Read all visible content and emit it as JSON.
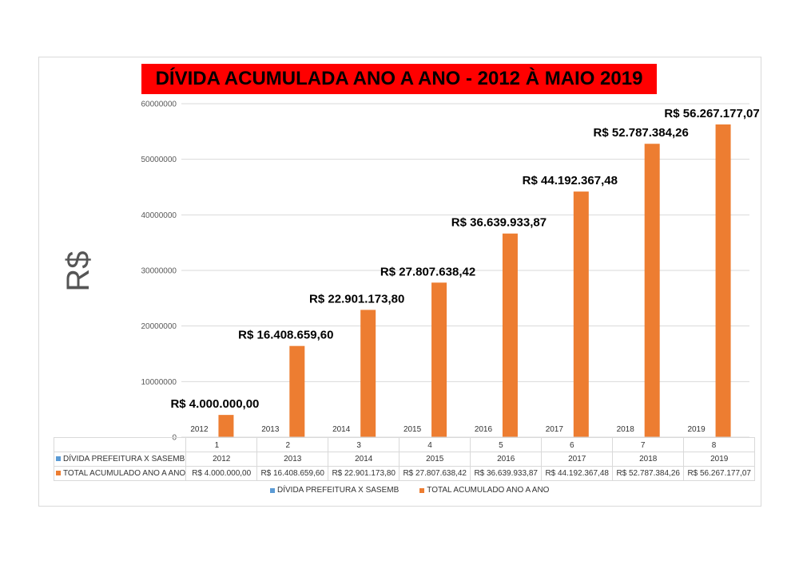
{
  "chart_data": {
    "type": "bar",
    "title": "DÍVIDA ACUMULADA ANO A ANO - 2012 À MAIO 2019",
    "ylabel": "R$",
    "xlabel": "",
    "ylim": [
      0,
      60000000
    ],
    "yticks": [
      "0",
      "10000000",
      "20000000",
      "30000000",
      "40000000",
      "50000000",
      "60000000"
    ],
    "categories": [
      "1",
      "2",
      "3",
      "4",
      "5",
      "6",
      "7",
      "8"
    ],
    "grid": true,
    "legend_position": "bottom",
    "series": [
      {
        "name": "DÍVIDA PREFEITURA X SASEMB",
        "color": "#5b9bd5",
        "values": [
          2012,
          2013,
          2014,
          2015,
          2016,
          2017,
          2018,
          2019
        ],
        "labels": [
          "2012",
          "2013",
          "2014",
          "2015",
          "2016",
          "2017",
          "2018",
          "2019"
        ]
      },
      {
        "name": "TOTAL ACUMULADO ANO A ANO",
        "color": "#ed7d31",
        "values": [
          4000000.0,
          16408659.6,
          22901173.8,
          27807638.42,
          36639933.87,
          44192367.48,
          52787384.26,
          56267177.07
        ],
        "labels": [
          "R$ 4.000.000,00",
          "R$ 16.408.659,60",
          "R$ 22.901.173,80",
          "R$ 27.807.638,42",
          "R$ 36.639.933,87",
          "R$ 44.192.367,48",
          "R$ 52.787.384,26",
          "R$ 56.267.177,07"
        ]
      }
    ]
  }
}
